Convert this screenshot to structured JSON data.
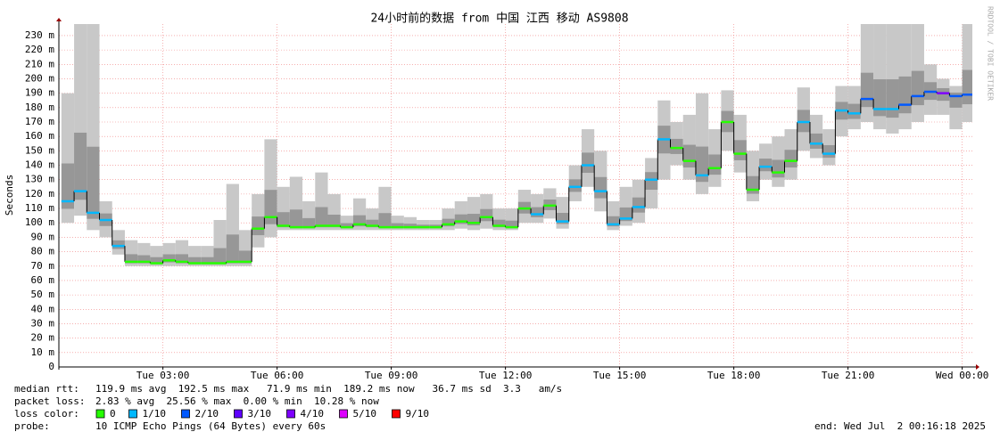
{
  "chart_data": {
    "type": "smoke",
    "title": "24小时前的数据 from 中国 江西 移动 AS9808",
    "y_label": "Seconds",
    "watermark": "RRDTOOL / TOBI OETIKER",
    "ylim": [
      0,
      238
    ],
    "yticks": [
      0,
      {
        "value": 10,
        "label": "10 m"
      },
      {
        "value": 20,
        "label": "20 m"
      },
      {
        "value": 30,
        "label": "30 m"
      },
      {
        "value": 40,
        "label": "40 m"
      },
      {
        "value": 50,
        "label": "50 m"
      },
      {
        "value": 60,
        "label": "60 m"
      },
      {
        "value": 70,
        "label": "70 m"
      },
      {
        "value": 80,
        "label": "80 m"
      },
      {
        "value": 90,
        "label": "90 m"
      },
      {
        "value": 100,
        "label": "100 m"
      },
      {
        "value": 110,
        "label": "110 m"
      },
      {
        "value": 120,
        "label": "120 m"
      },
      {
        "value": 130,
        "label": "130 m"
      },
      {
        "value": 140,
        "label": "140 m"
      },
      {
        "value": 150,
        "label": "150 m"
      },
      {
        "value": 160,
        "label": "160 m"
      },
      {
        "value": 170,
        "label": "170 m"
      },
      {
        "value": 180,
        "label": "180 m"
      },
      {
        "value": 190,
        "label": "190 m"
      },
      {
        "value": 200,
        "label": "200 m"
      },
      {
        "value": 210,
        "label": "210 m"
      },
      {
        "value": 220,
        "label": "220 m"
      },
      {
        "value": 230,
        "label": "230 m"
      }
    ],
    "xlim": [
      "Tue 00:16",
      "Wed 00:16"
    ],
    "xticks": [
      "Tue 03:00",
      "Tue 06:00",
      "Tue 09:00",
      "Tue 12:00",
      "Tue 15:00",
      "Tue 18:00",
      "Tue 21:00",
      "Wed 00:00"
    ],
    "grid": true,
    "x": [
      "Tue 00:20",
      "Tue 00:40",
      "Tue 01:00",
      "Tue 01:20",
      "Tue 01:40",
      "Tue 02:00",
      "Tue 02:20",
      "Tue 02:40",
      "Tue 03:00",
      "Tue 03:20",
      "Tue 03:40",
      "Tue 04:00",
      "Tue 04:20",
      "Tue 04:40",
      "Tue 05:00",
      "Tue 05:20",
      "Tue 05:40",
      "Tue 06:00",
      "Tue 06:20",
      "Tue 06:40",
      "Tue 07:00",
      "Tue 07:20",
      "Tue 07:40",
      "Tue 08:00",
      "Tue 08:20",
      "Tue 08:40",
      "Tue 09:00",
      "Tue 09:20",
      "Tue 09:40",
      "Tue 10:00",
      "Tue 10:20",
      "Tue 10:40",
      "Tue 11:00",
      "Tue 11:20",
      "Tue 11:40",
      "Tue 12:00",
      "Tue 12:20",
      "Tue 12:40",
      "Tue 13:00",
      "Tue 13:20",
      "Tue 13:40",
      "Tue 14:00",
      "Tue 14:20",
      "Tue 14:40",
      "Tue 15:00",
      "Tue 15:20",
      "Tue 15:40",
      "Tue 16:00",
      "Tue 16:20",
      "Tue 16:40",
      "Tue 17:00",
      "Tue 17:20",
      "Tue 17:40",
      "Tue 18:00",
      "Tue 18:20",
      "Tue 18:40",
      "Tue 19:00",
      "Tue 19:20",
      "Tue 19:40",
      "Tue 20:00",
      "Tue 20:20",
      "Tue 20:40",
      "Tue 21:00",
      "Tue 21:20",
      "Tue 21:40",
      "Tue 22:00",
      "Tue 22:20",
      "Tue 22:40",
      "Tue 23:00",
      "Tue 23:20",
      "Tue 23:40",
      "Wed 00:00"
    ],
    "median": [
      115,
      122,
      107,
      102,
      84,
      73,
      73,
      72,
      74,
      73,
      72,
      72,
      72,
      73,
      73,
      96,
      104,
      98,
      97,
      97,
      98,
      98,
      97,
      99,
      98,
      97,
      97,
      97,
      97,
      97,
      99,
      101,
      100,
      104,
      98,
      97,
      110,
      106,
      112,
      101,
      125,
      140,
      122,
      99,
      103,
      111,
      130,
      158,
      152,
      143,
      133,
      138,
      170,
      148,
      123,
      139,
      135,
      143,
      170,
      155,
      148,
      178,
      176,
      186,
      179,
      179,
      182,
      188,
      191,
      190,
      188,
      189
    ],
    "smoke_low": [
      100,
      105,
      95,
      90,
      78,
      70,
      70,
      70,
      70,
      70,
      70,
      70,
      70,
      70,
      70,
      83,
      90,
      95,
      95,
      95,
      95,
      95,
      95,
      95,
      95,
      95,
      95,
      95,
      95,
      95,
      95,
      96,
      95,
      96,
      95,
      95,
      100,
      100,
      103,
      96,
      115,
      125,
      108,
      95,
      98,
      100,
      110,
      130,
      140,
      130,
      120,
      125,
      150,
      135,
      115,
      130,
      125,
      130,
      150,
      145,
      140,
      160,
      165,
      170,
      165,
      162,
      165,
      170,
      175,
      175,
      165,
      170
    ],
    "smoke_high": [
      190,
      238,
      238,
      115,
      95,
      88,
      86,
      84,
      86,
      88,
      84,
      84,
      102,
      127,
      95,
      120,
      158,
      125,
      132,
      115,
      135,
      120,
      105,
      117,
      110,
      125,
      105,
      104,
      102,
      102,
      110,
      115,
      118,
      120,
      110,
      110,
      123,
      120,
      124,
      118,
      140,
      165,
      150,
      115,
      125,
      130,
      145,
      185,
      170,
      175,
      190,
      165,
      192,
      175,
      150,
      155,
      160,
      165,
      194,
      175,
      165,
      195,
      195,
      238,
      238,
      238,
      238,
      238,
      210,
      200,
      195,
      238
    ],
    "loss": [
      1,
      1,
      1,
      1,
      1,
      0,
      0,
      0,
      0,
      0,
      0,
      0,
      0,
      0,
      0,
      0,
      0,
      0,
      0,
      0,
      0,
      0,
      0,
      0,
      0,
      0,
      0,
      0,
      0,
      0,
      0,
      0,
      0,
      0,
      0,
      0,
      0,
      1,
      0,
      1,
      1,
      1,
      1,
      1,
      1,
      1,
      1,
      1,
      0,
      0,
      1,
      0,
      0,
      0,
      0,
      1,
      0,
      0,
      1,
      1,
      1,
      1,
      1,
      2,
      1,
      1,
      2,
      2,
      2,
      4,
      2,
      2
    ],
    "loss_legend_label": "loss color:",
    "loss_legend": [
      {
        "value": 0,
        "label": "0",
        "color": "#26ff00"
      },
      {
        "value": 1,
        "label": "1/10",
        "color": "#00b8ff"
      },
      {
        "value": 2,
        "label": "2/10",
        "color": "#0059ff"
      },
      {
        "value": 3,
        "label": "3/10",
        "color": "#5e00ff"
      },
      {
        "value": 4,
        "label": "4/10",
        "color": "#7e00ff"
      },
      {
        "value": 5,
        "label": "5/10",
        "color": "#dd00ff"
      },
      {
        "value": 9,
        "label": "9/10",
        "color": "#ff0000"
      }
    ],
    "footer": [
      {
        "label": "median rtt:",
        "text": "119.9 ms avg  192.5 ms max   71.9 ms min  189.2 ms now   36.7 ms sd  3.3   am/s"
      },
      {
        "label": "packet loss:",
        "text": "2.83 % avg  25.56 % max  0.00 % min  10.28 % now"
      }
    ],
    "probe_label": "probe:",
    "probe": "10 ICMP Echo Pings (64 Bytes) every 60s",
    "end": "end: Wed Jul  2 00:16:18 2025"
  }
}
